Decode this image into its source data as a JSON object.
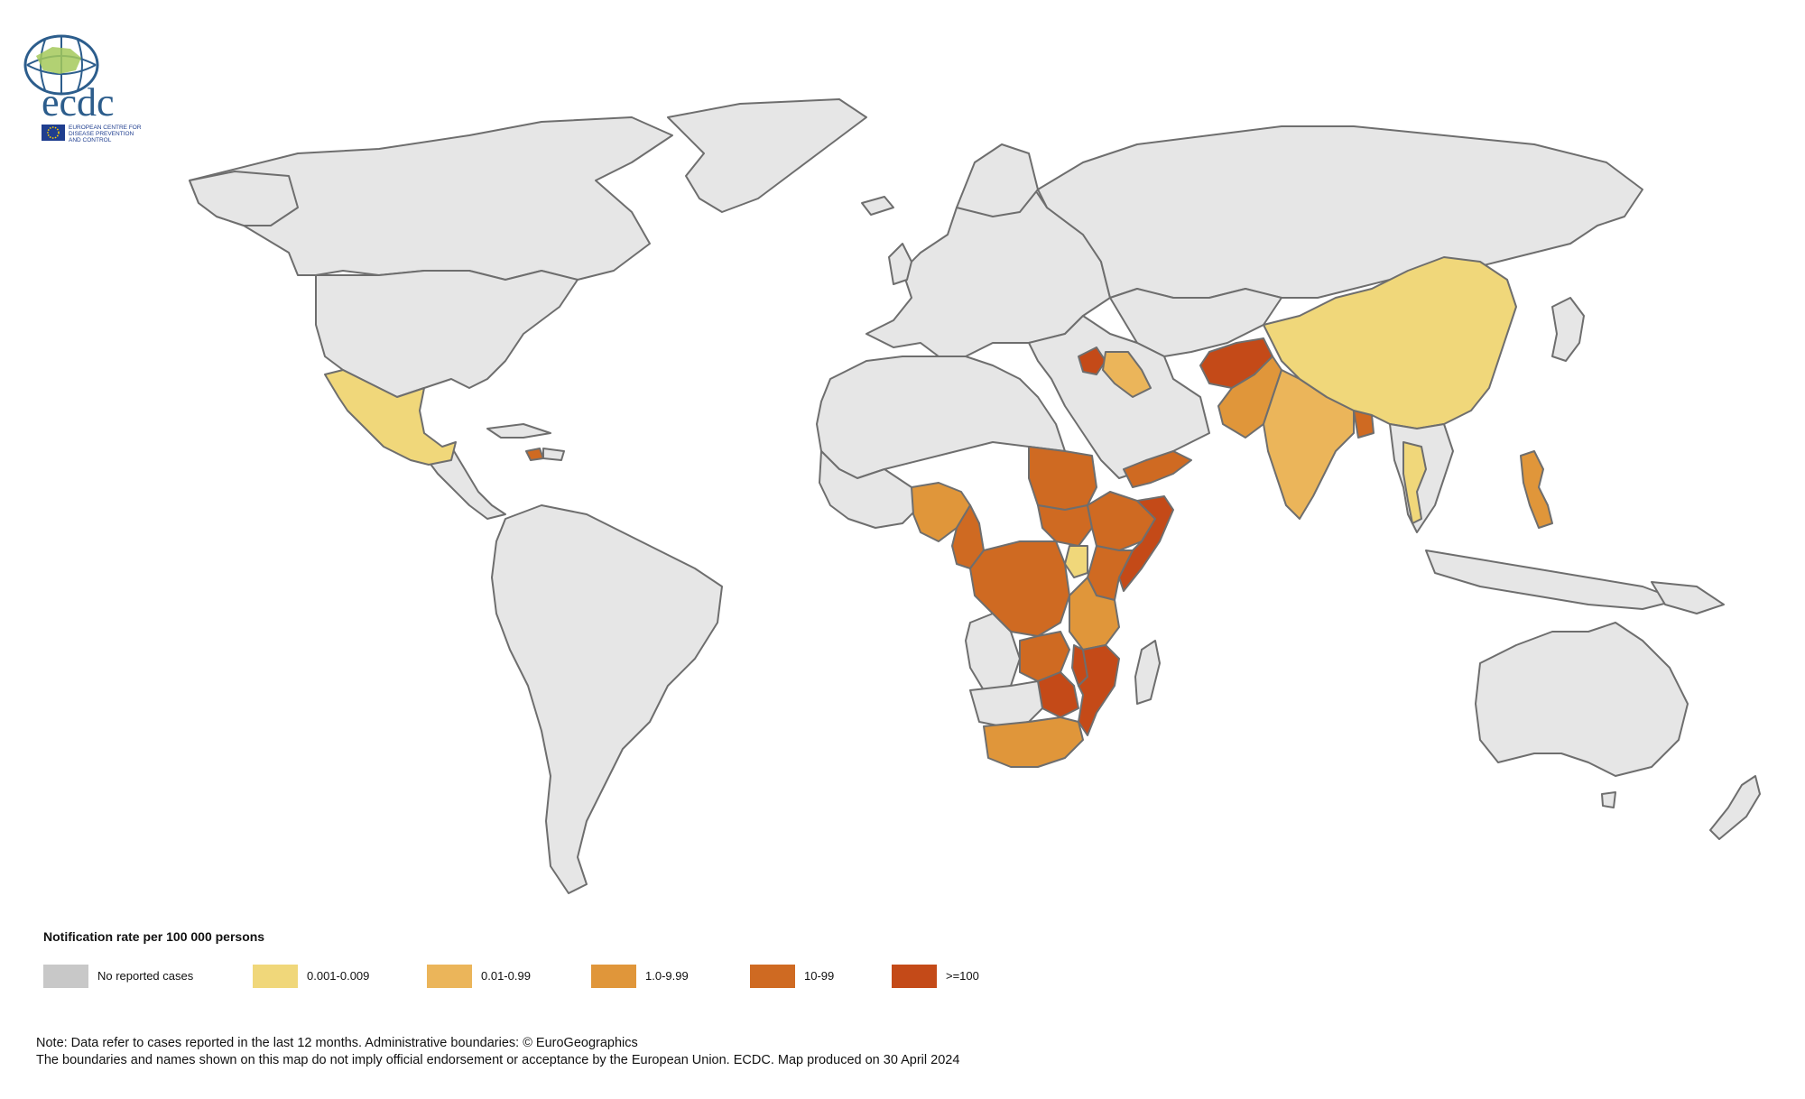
{
  "logo": {
    "wordmark": "ecdc",
    "line1": "EUROPEAN CENTRE FOR",
    "line2": "DISEASE PREVENTION",
    "line3": "AND CONTROL"
  },
  "legend": {
    "title": "Notification rate per 100 000 persons",
    "items": [
      {
        "label": "No reported cases",
        "color": "#c8c8c8"
      },
      {
        "label": "0.001-0.009",
        "color": "#f0d77a"
      },
      {
        "label": "0.01-0.99",
        "color": "#ebb55a"
      },
      {
        "label": "1.0-9.99",
        "color": "#e0963a"
      },
      {
        "label": "10-99",
        "color": "#cf6a22"
      },
      {
        "label": ">=100",
        "color": "#c44a18"
      }
    ]
  },
  "note": {
    "line1": "Note: Data refer to cases reported in the last 12 months. Administrative boundaries: © EuroGeographics",
    "line2": "The boundaries and names shown on this map do not imply official endorsement or acceptance by the European Union. ECDC. Map produced on 30 April 2024"
  },
  "colors": {
    "no_data_land": "#e6e6e6",
    "border": "#6e6e6e"
  },
  "map_data": {
    "classes": [
      "No reported cases",
      "0.001-0.009",
      "0.01-0.99",
      "1.0-9.99",
      "10-99",
      ">=100"
    ],
    "regions": [
      {
        "name": "Mexico",
        "class": "0.001-0.009"
      },
      {
        "name": "China",
        "class": "0.001-0.009"
      },
      {
        "name": "Thailand",
        "class": "0.001-0.009"
      },
      {
        "name": "Uganda",
        "class": "0.001-0.009"
      },
      {
        "name": "Iraq",
        "class": "0.01-0.99"
      },
      {
        "name": "India",
        "class": "0.01-0.99"
      },
      {
        "name": "Nigeria",
        "class": "1.0-9.99"
      },
      {
        "name": "Tanzania",
        "class": "1.0-9.99"
      },
      {
        "name": "South Africa",
        "class": "1.0-9.99"
      },
      {
        "name": "Pakistan",
        "class": "1.0-9.99"
      },
      {
        "name": "Philippines",
        "class": "1.0-9.99"
      },
      {
        "name": "Sudan",
        "class": "10-99"
      },
      {
        "name": "South Sudan",
        "class": "10-99"
      },
      {
        "name": "Ethiopia",
        "class": "10-99"
      },
      {
        "name": "Kenya",
        "class": "10-99"
      },
      {
        "name": "Cameroon",
        "class": "10-99"
      },
      {
        "name": "DR Congo",
        "class": "10-99"
      },
      {
        "name": "Zambia",
        "class": "10-99"
      },
      {
        "name": "Yemen",
        "class": "10-99"
      },
      {
        "name": "Bangladesh",
        "class": "10-99"
      },
      {
        "name": "Haiti",
        "class": "10-99"
      },
      {
        "name": "Syria",
        "class": ">=100"
      },
      {
        "name": "Afghanistan",
        "class": ">=100"
      },
      {
        "name": "Somalia",
        "class": ">=100"
      },
      {
        "name": "Mozambique",
        "class": ">=100"
      },
      {
        "name": "Malawi",
        "class": ">=100"
      },
      {
        "name": "Zimbabwe",
        "class": ">=100"
      }
    ]
  }
}
